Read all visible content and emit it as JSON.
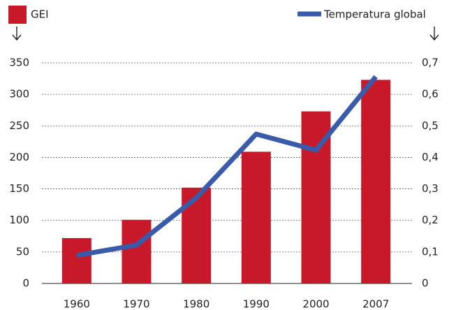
{
  "chart_data": {
    "type": "bar",
    "categories": [
      "1960",
      "1970",
      "1980",
      "1990",
      "2000",
      "2007"
    ],
    "series": [
      {
        "name": "GEI",
        "color": "#c8192b",
        "values": [
          72,
          101,
          152,
          209,
          273,
          323
        ]
      },
      {
        "name": "Temperatura global",
        "color": "#3a5ba9",
        "type": "line",
        "axis": "y2",
        "values": [
          0.089,
          0.122,
          0.272,
          0.474,
          0.423,
          0.656
        ]
      }
    ],
    "ylim": [
      0,
      350
    ],
    "yticks": [
      0,
      50,
      100,
      150,
      200,
      250,
      300,
      350
    ],
    "y2lim": [
      0,
      0.7
    ],
    "y2ticks": [
      0,
      {
        "value": 0.1,
        "label": "0,1"
      },
      {
        "value": 0.2,
        "label": "0,2"
      },
      {
        "value": 0.3,
        "label": "0,3"
      },
      {
        "value": 0.4,
        "label": "0,4"
      },
      {
        "value": 0.5,
        "label": "0,5"
      },
      {
        "value": 0.6,
        "label": "0,6"
      },
      {
        "value": 0.7,
        "label": "0,7"
      }
    ],
    "grid": true
  }
}
